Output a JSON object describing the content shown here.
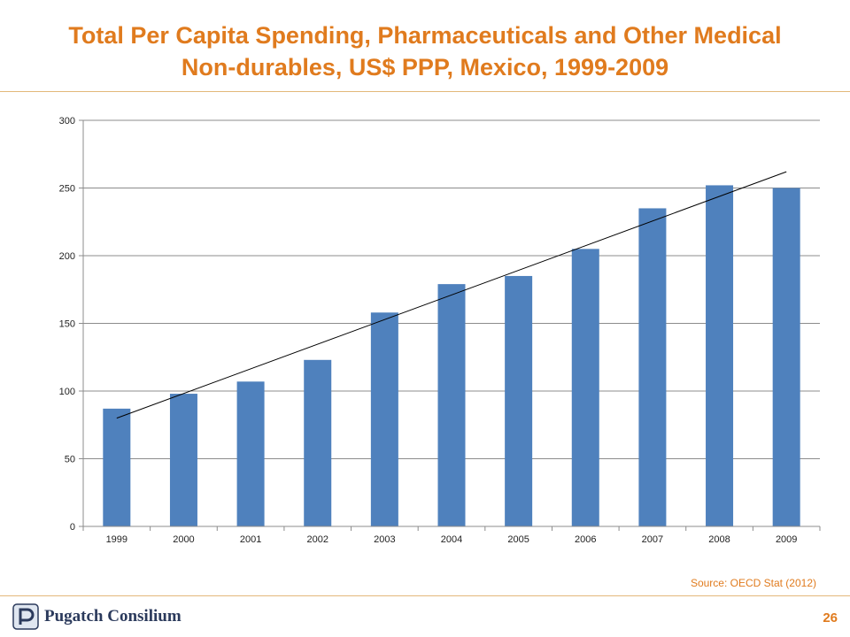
{
  "title_line1": "Total Per Capita Spending, Pharmaceuticals and Other Medical",
  "title_line2": "Non-durables, US$ PPP, Mexico, 1999-2009",
  "source": "Source: OECD Stat (2012)",
  "logo_text": "Pugatch Consilium",
  "page_number": "26",
  "colors": {
    "title": "#e07b1e",
    "bar": "#4f81bd",
    "trend": "#000000",
    "grid": "#8c8c8c"
  },
  "chart_data": {
    "type": "bar",
    "categories": [
      "1999",
      "2000",
      "2001",
      "2002",
      "2003",
      "2004",
      "2005",
      "2006",
      "2007",
      "2008",
      "2009"
    ],
    "series": [
      {
        "values": [
          87,
          98,
          107,
          123,
          158,
          179,
          185,
          205,
          235,
          252,
          250
        ]
      }
    ],
    "trendline": {
      "type": "linear",
      "start": [
        1999,
        80
      ],
      "end": [
        2009,
        262
      ]
    },
    "ylim": [
      0,
      300
    ],
    "yticks": [
      0,
      50,
      100,
      150,
      200,
      250,
      300
    ],
    "grid": true,
    "legend": "none",
    "xlabel": "",
    "ylabel": ""
  }
}
